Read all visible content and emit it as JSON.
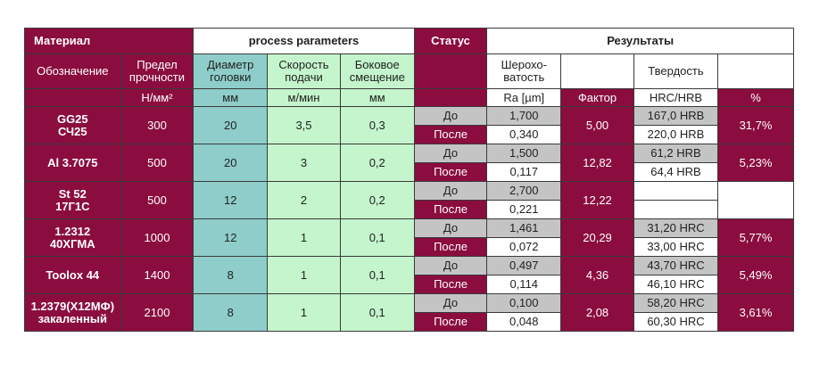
{
  "header": {
    "material": "Материал",
    "process": "process parameters",
    "status": "Статус",
    "results": "Результаты"
  },
  "subheader": {
    "designation": "Обозначение",
    "strength": "Предел прочности",
    "diameter": "Диаметр головки",
    "feed": "Скорость подачи",
    "offset": "Боковое смещение",
    "roughness": "Шерохо-ватость",
    "hardness": "Твердость"
  },
  "units": {
    "strength": "Н/мм²",
    "diameter": "мм",
    "feed": "м/мин",
    "offset": "мм",
    "roughness": "Ra [µm]",
    "factor": "Фактор",
    "hardness": "HRC/HRB",
    "percent": "%"
  },
  "rows": [
    {
      "material": [
        "GG25",
        "СЧ25"
      ],
      "strength": "300",
      "diameter": "20",
      "feed": "3,5",
      "offset": "0,3",
      "before_label": "До",
      "after_label": "После",
      "ra_before": "1,700",
      "ra_after": "0,340",
      "factor": "5,00",
      "hard_before": "167,0 HRB",
      "hard_after": "220,0 HRB",
      "percent": "31,7%"
    },
    {
      "material": [
        "Al 3.7075"
      ],
      "strength": "500",
      "diameter": "20",
      "feed": "3",
      "offset": "0,2",
      "before_label": "До",
      "after_label": "После",
      "ra_before": "1,500",
      "ra_after": "0,117",
      "factor": "12,82",
      "hard_before": "61,2 HRB",
      "hard_after": "64,4 HRB",
      "percent": "5,23%"
    },
    {
      "material": [
        "St 52",
        "17Г1С"
      ],
      "strength": "500",
      "diameter": "12",
      "feed": "2",
      "offset": "0,2",
      "before_label": "До",
      "after_label": "После",
      "ra_before": "2,700",
      "ra_after": "0,221",
      "factor": "12,22",
      "hard_before": "",
      "hard_after": "",
      "percent": ""
    },
    {
      "material": [
        "1.2312",
        "40ХГМА"
      ],
      "strength": "1000",
      "diameter": "12",
      "feed": "1",
      "offset": "0,1",
      "before_label": "До",
      "after_label": "После",
      "ra_before": "1,461",
      "ra_after": "0,072",
      "factor": "20,29",
      "hard_before": "31,20 HRC",
      "hard_after": "33,00 HRC",
      "percent": "5,77%"
    },
    {
      "material": [
        "Toolox 44"
      ],
      "strength": "1400",
      "diameter": "8",
      "feed": "1",
      "offset": "0,1",
      "before_label": "До",
      "after_label": "После",
      "ra_before": "0,497",
      "ra_after": "0,114",
      "factor": "4,36",
      "hard_before": "43,70 HRC",
      "hard_after": "46,10 HRC",
      "percent": "5,49%"
    },
    {
      "material": [
        "1.2379(Х12МФ)",
        "закаленный"
      ],
      "strength": "2100",
      "diameter": "8",
      "feed": "1",
      "offset": "0,1",
      "before_label": "До",
      "after_label": "После",
      "ra_before": "0,100",
      "ra_after": "0,048",
      "factor": "2,08",
      "hard_before": "58,20 HRC",
      "hard_after": "60,30 HRC",
      "percent": "3,61%"
    }
  ],
  "colors": {
    "maroon": "#8b0d3f",
    "teal": "#8ecdc9",
    "mint": "#c4f5cc",
    "gray": "#c4c4c4"
  }
}
